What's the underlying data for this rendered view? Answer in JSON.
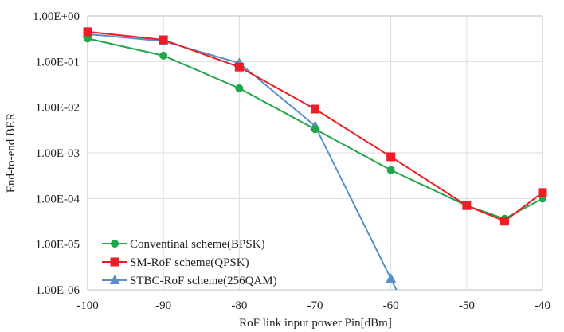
{
  "chart_data": {
    "type": "line",
    "title": "",
    "xlabel": "RoF link input power Pin[dBm]",
    "ylabel": "End-to-end BER",
    "xlim": [
      -100,
      -40
    ],
    "ylim": [
      1e-06,
      1
    ],
    "yscale": "log",
    "grid": true,
    "legend_position": "bottom-left",
    "x_ticks": [
      -100,
      -90,
      -80,
      -70,
      -60,
      -50,
      -40
    ],
    "x_tick_labels": [
      "-100",
      "-90",
      "-80",
      "-70",
      "-60",
      "-50",
      "-40"
    ],
    "y_ticks": [
      1,
      0.1,
      0.01,
      0.001,
      0.0001,
      1e-05,
      1e-06
    ],
    "y_tick_labels": [
      "1.00E+00",
      "1.00E-01",
      "1.00E-02",
      "1.00E-03",
      "1.00E-04",
      "1.00E-05",
      "1.00E-06"
    ],
    "series": [
      {
        "name": "Conventinal scheme(BPSK)",
        "color": "#1fa74a",
        "marker": "circle",
        "x": [
          -100,
          -90,
          -80,
          -70,
          -60,
          -50,
          -45,
          -40
        ],
        "y": [
          0.32,
          0.135,
          0.026,
          0.0033,
          0.00042,
          7e-05,
          3.6e-05,
          0.0001
        ]
      },
      {
        "name": "SM-RoF scheme(QPSK)",
        "color": "#ee1c25",
        "marker": "square",
        "x": [
          -100,
          -90,
          -80,
          -70,
          -60,
          -50,
          -45,
          -40
        ],
        "y": [
          0.45,
          0.3,
          0.076,
          0.0091,
          0.00082,
          7e-05,
          3.2e-05,
          0.000135
        ]
      },
      {
        "name": "STBC-RoF scheme(256QAM)",
        "color": "#5b8fc9",
        "marker": "triangle",
        "x": [
          -100,
          -90,
          -80,
          -70,
          -60
        ],
        "y": [
          0.4,
          0.28,
          0.093,
          0.0039,
          1.75e-06
        ],
        "extends_below_axis_to_x": -58.3
      }
    ]
  }
}
